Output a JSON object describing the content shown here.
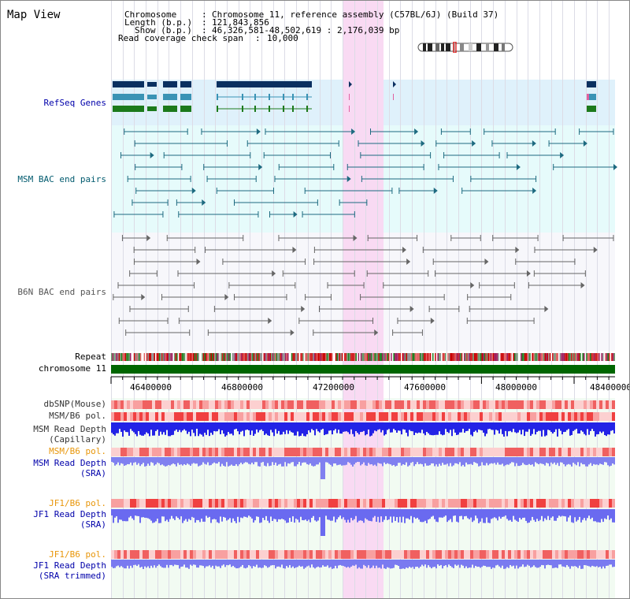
{
  "title": "Map View",
  "header": {
    "chromosome_key": "Chromosome",
    "chromosome_val": "Chromosome 11, reference assembly (C57BL/6J) (Build 37)",
    "length_key": "Length (b.p.)",
    "length_val": "121,843,856",
    "show_key": "Show (b.p.)",
    "show_val": "46,326,581-48,502,619 : 2,176,039 bp",
    "span_key": "Read coverage check span",
    "span_val": "10,000"
  },
  "tracks": {
    "refseq": "RefSeq Genes",
    "msm_bac": "MSM BAC end pairs",
    "b6n_bac": "B6N BAC end pairs",
    "repeat": "Repeat",
    "chromosome": "chromosome 11",
    "dbsnp": "dbSNP(Mouse)",
    "msm_b6_pol": "MSM/B6 pol.",
    "msm_depth_cap_1": "MSM Read Depth",
    "msm_depth_cap_2": "(Capillary)",
    "msm_b6_pol_2": "MSM/B6 pol.",
    "msm_depth_sra_1": "MSM Read Depth",
    "msm_depth_sra_2": "(SRA)",
    "jf1_b6_pol": "JF1/B6 pol.",
    "jf1_depth_sra_1": "JF1 Read Depth",
    "jf1_depth_sra_2": "(SRA)",
    "jf1_b6_pol_2": "JF1/B6 pol.",
    "jf1_depth_tr_1": "JF1 Read Depth",
    "jf1_depth_tr_2": "(SRA trimmed)"
  },
  "ticks": [
    "46400000",
    "46800000",
    "47200000",
    "47600000",
    "48000000",
    "48400000"
  ],
  "colors": {
    "refseq_bg": "#dff1fb",
    "msm_bg": "#e6fbfb",
    "b6n_bg": "#f7f7fb",
    "highlight": "#f9d8f2",
    "blue_label": "#0000aa",
    "orange_label": "#e8960a",
    "chromosome": "#006600",
    "depth_blue": "#2323e6",
    "depth_light": "#7878f0"
  }
}
